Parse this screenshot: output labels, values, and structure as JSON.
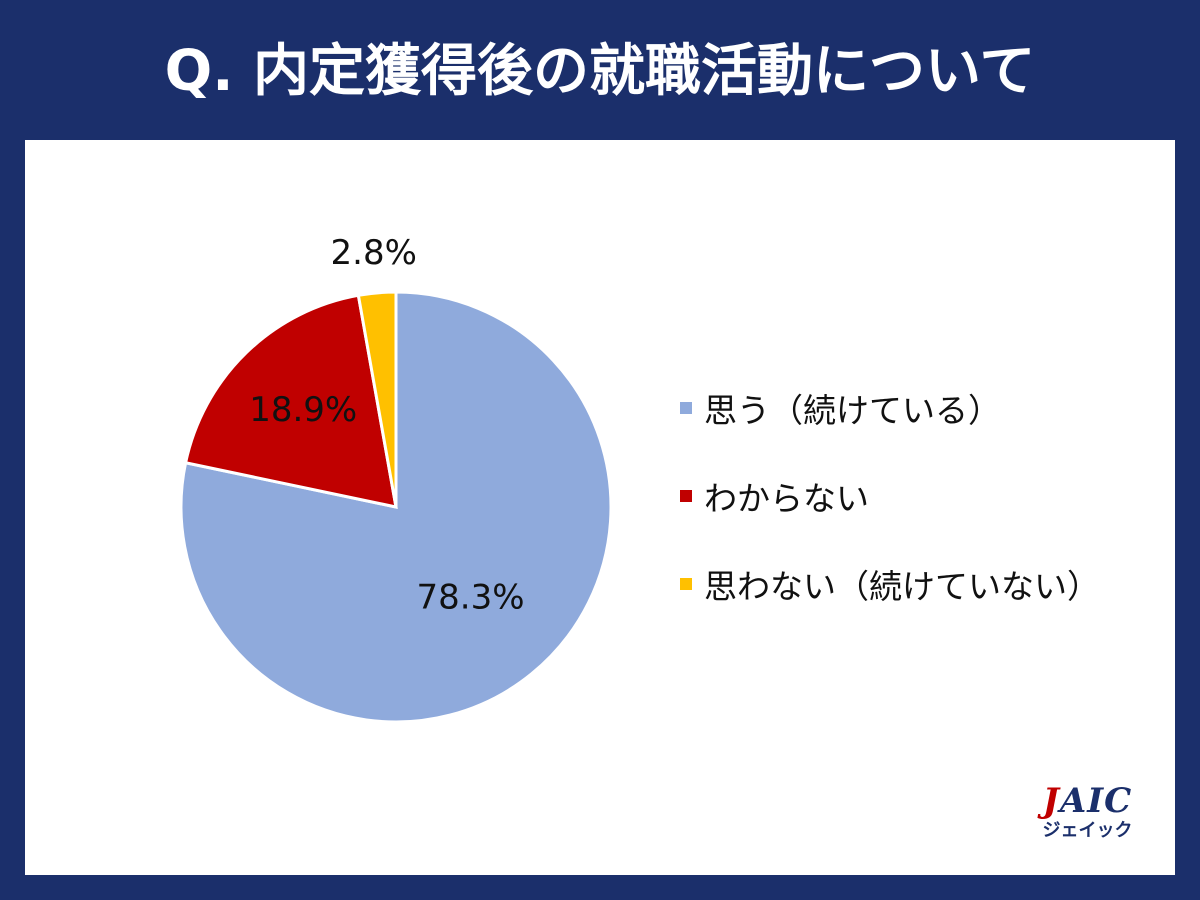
{
  "title": "Q. 内定獲得後の就職活動について",
  "chart_data": {
    "type": "pie",
    "start": "12 o'clock, clockwise",
    "slices": [
      {
        "label": "思う（続けている）",
        "value": 78.3,
        "display": "78.3%",
        "color": "#8faadc"
      },
      {
        "label": "わからない",
        "value": 18.9,
        "display": "18.9%",
        "color": "#c00000"
      },
      {
        "label": "思わない（続けていない）",
        "value": 2.8,
        "display": "2.8%",
        "color": "#ffc000"
      }
    ],
    "legend_placement": "right"
  },
  "logo": {
    "text": "JAIC",
    "first_letter": "J",
    "rest": "AIC",
    "subtitle": "ジェイック"
  }
}
